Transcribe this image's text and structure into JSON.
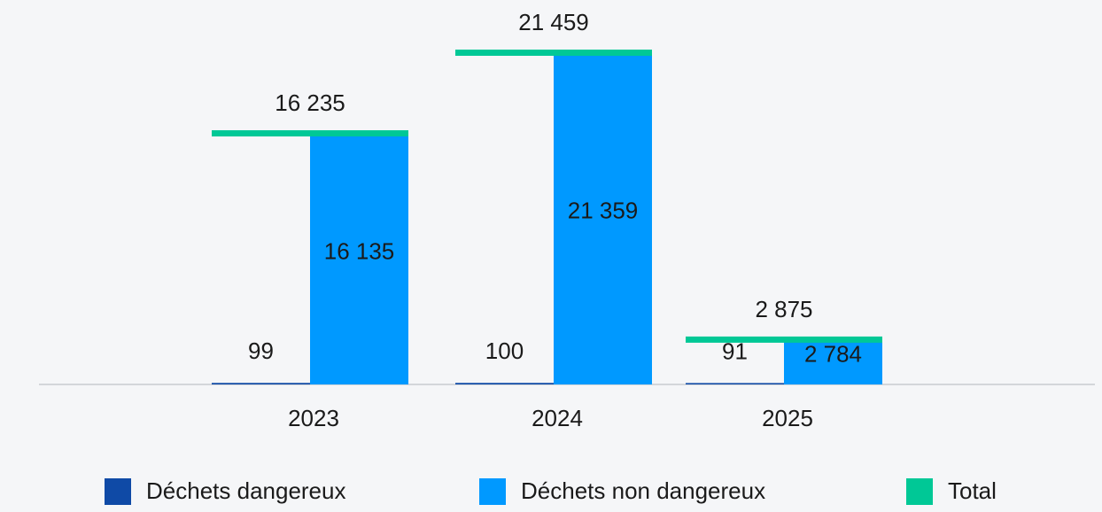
{
  "chart_data": {
    "type": "bar",
    "categories": [
      "2023",
      "2024",
      "2025"
    ],
    "series": [
      {
        "name": "Déchets dangereux",
        "color": "#0f4aa6",
        "values": [
          99,
          100,
          91
        ]
      },
      {
        "name": "Déchets non dangereux",
        "color": "#0099ff",
        "values": [
          16135,
          21359,
          2784
        ],
        "value_labels": [
          "16 135",
          "21 359",
          "2 784"
        ]
      },
      {
        "name": "Total",
        "color": "#00c896",
        "values": [
          16235,
          21459,
          2875
        ],
        "value_labels": [
          "16 235",
          "21 459",
          "2 875"
        ]
      }
    ],
    "ylim": [
      0,
      24000
    ]
  }
}
